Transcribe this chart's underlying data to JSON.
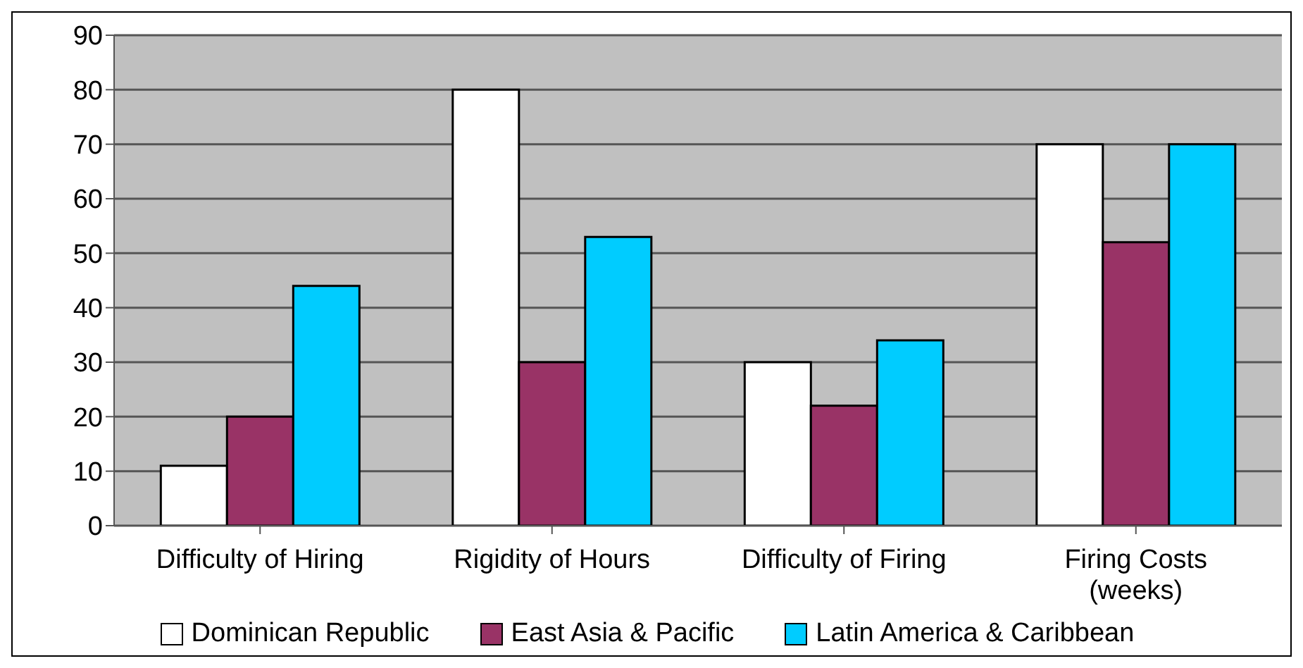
{
  "chart_data": {
    "type": "bar",
    "categories": [
      "Difficulty of Hiring",
      "Rigidity of Hours",
      "Difficulty of Firing",
      "Firing Costs\n(weeks)"
    ],
    "series": [
      {
        "name": "Dominican Republic",
        "color": "#ffffff",
        "values": [
          11,
          80,
          30,
          70
        ]
      },
      {
        "name": "East Asia & Pacific",
        "color": "#993366",
        "values": [
          20,
          30,
          22,
          52
        ]
      },
      {
        "name": "Latin America & Caribbean",
        "color": "#00ccff",
        "values": [
          44,
          53,
          34,
          70
        ]
      }
    ],
    "ylim": [
      0,
      90
    ],
    "yticks": [
      0,
      10,
      20,
      30,
      40,
      50,
      60,
      70,
      80,
      90
    ],
    "grid": "y",
    "legend": "bottom"
  }
}
